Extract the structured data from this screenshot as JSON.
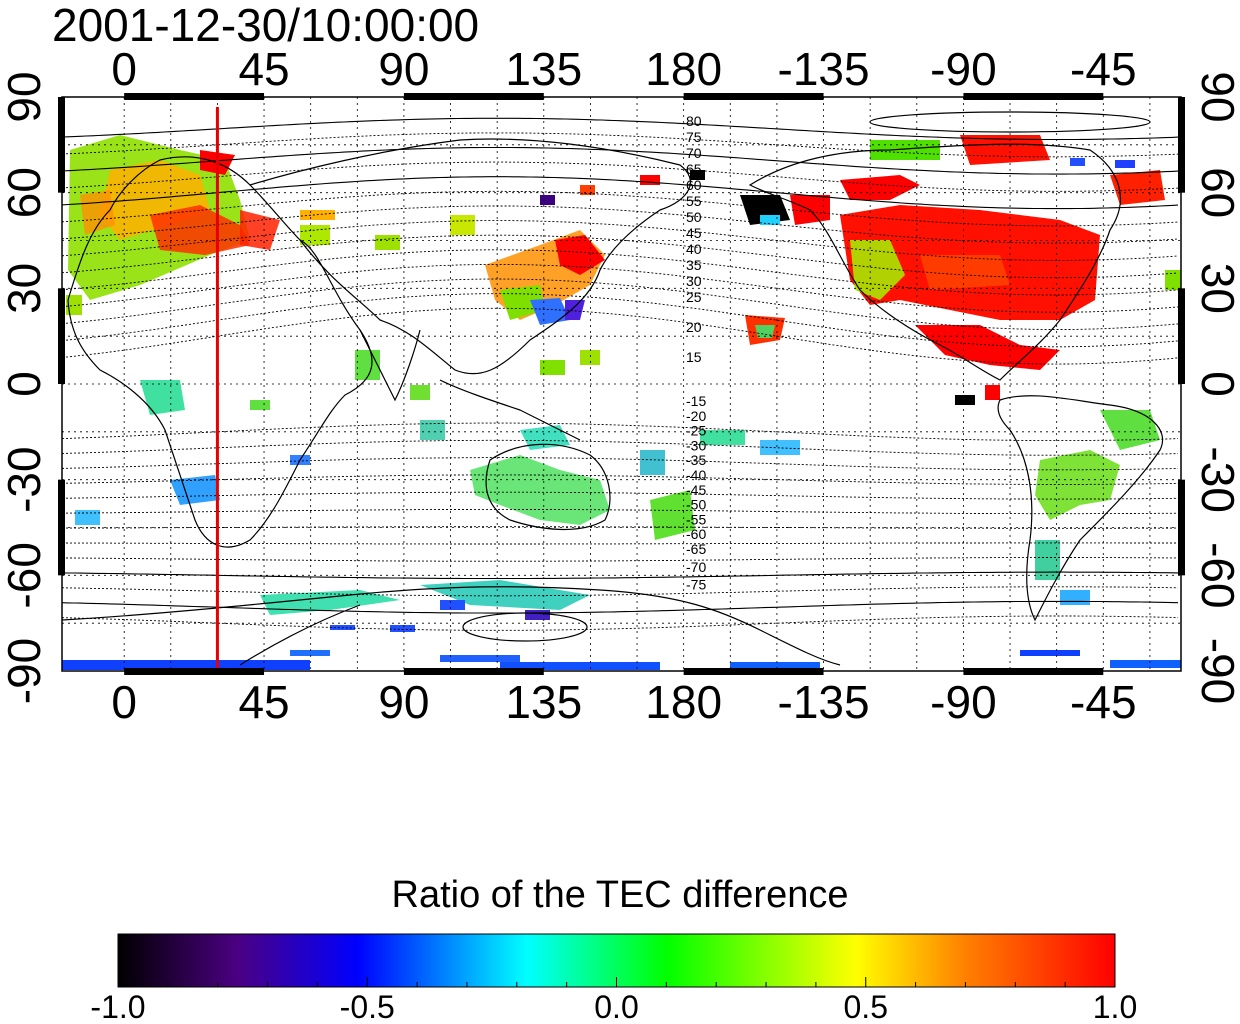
{
  "timestamp": "2001-12-30/10:00:00",
  "map": {
    "lon_ticks": [
      "0",
      "45",
      "90",
      "135",
      "180",
      "-135",
      "-90",
      "-45"
    ],
    "lat_ticks": [
      "90",
      "60",
      "30",
      "0",
      "-30",
      "-60",
      "-90"
    ],
    "north_contour_labels": [
      "80",
      "75",
      "70",
      "65",
      "60",
      "55",
      "50",
      "45",
      "40",
      "35",
      "30",
      "25",
      "20",
      "15"
    ],
    "south_contour_labels": [
      "-15",
      "-20",
      "-25",
      "-30",
      "-35",
      "-40",
      "-45",
      "-50",
      "-55",
      "-60",
      "-65",
      "-70",
      "-75"
    ],
    "red_line_lon": 30,
    "red_line_color": "#e60000"
  },
  "colorbar": {
    "title": "Ratio of the TEC difference",
    "tick_labels": [
      "-1.0",
      "-0.5",
      "0.0",
      "0.5",
      "1.0"
    ],
    "colors": [
      "#000000",
      "#4b0082",
      "#0000ff",
      "#00ffff",
      "#00ff00",
      "#ffff00",
      "#ff8000",
      "#ff0000"
    ]
  }
}
